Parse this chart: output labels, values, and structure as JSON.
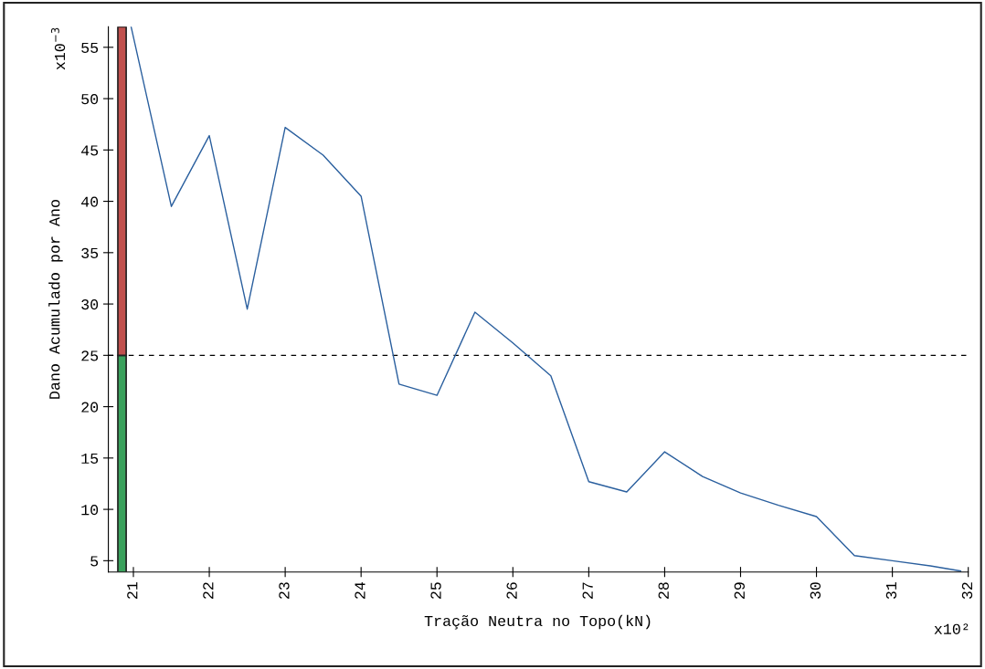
{
  "chart_data": {
    "type": "line",
    "xlabel": "Tração Neutra no Topo(kN)",
    "ylabel": "Dano Acumulado por Ano",
    "annotations": [
      "x10$^{−3}$",
      "x10²"
    ],
    "xlim": [
      20.67,
      32
    ],
    "xticks": [
      21,
      22,
      23,
      24,
      25,
      26,
      27,
      28,
      29,
      30,
      31,
      32
    ],
    "ylim": [
      3.9,
      57
    ],
    "yticks": [
      5,
      10,
      15,
      20,
      25,
      30,
      35,
      40,
      45,
      50,
      55
    ],
    "grid": false,
    "legend": false,
    "marker": "none",
    "line_style": "solid",
    "series": [
      {
        "type": "bar",
        "color": "#3aa15c",
        "x": [
          20.85
        ],
        "base": [
          3.9
        ],
        "values": [
          21.1
        ]
      },
      {
        "type": "bar",
        "color": "#c0504d",
        "x": [
          20.85
        ],
        "base": [
          25
        ],
        "values": [
          32
        ]
      },
      {
        "color": "#2a5f9e",
        "x": [
          20.97,
          21.5,
          22,
          22.5,
          23,
          23.5,
          24,
          24.5,
          25,
          25.5,
          26,
          26.5,
          27,
          27.5,
          28,
          28.5,
          29,
          29.5,
          30,
          30.5,
          31,
          31.5,
          31.9
        ],
        "values": [
          57,
          39.5,
          46.4,
          29.5,
          47.2,
          44.5,
          40.5,
          22.2,
          21.1,
          29.2,
          26.2,
          23.0,
          12.7,
          11.7,
          15.6,
          13.2,
          11.6,
          10.4,
          9.3,
          5.5,
          5.0,
          4.5,
          4.0
        ]
      }
    ],
    "ref_lines": [
      {
        "axis": "y",
        "value": 25,
        "color": "#000000",
        "line_style": "dashed"
      }
    ]
  }
}
